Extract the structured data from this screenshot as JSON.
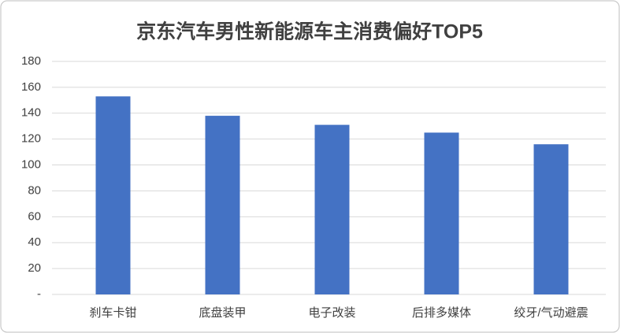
{
  "chart_data": {
    "type": "bar",
    "title": "京东汽车男性新能源车主消费偏好TOP5",
    "categories": [
      "刹车卡钳",
      "底盘装甲",
      "电子改装",
      "后排多媒体",
      "绞牙/气动避震"
    ],
    "values": [
      153,
      138,
      131,
      125,
      116
    ],
    "color": "#4472c4",
    "ylim": [
      0,
      180
    ],
    "yticks": [
      {
        "value": 0,
        "label": "-"
      },
      20,
      40,
      60,
      80,
      100,
      120,
      140,
      160,
      180
    ],
    "grid": true
  }
}
